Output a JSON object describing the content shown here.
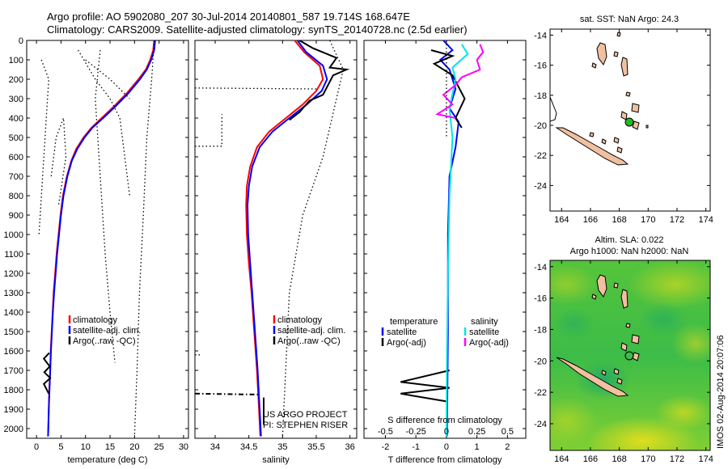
{
  "header": {
    "line1": "Argo profile: AO 5902080_207 30-Jul-2014 20140801_587 19.714S 168.647E",
    "line2": "Climatology: CARS2009. Satellite-adjusted climatology: synTS_20140728.nc (2.5d earlier)"
  },
  "side_text": "IMOS 02-Aug-2014 20:07:06",
  "credits": {
    "line1": "US ARGO PROJECT",
    "line2": "PI: STEPHEN RISER"
  },
  "colors": {
    "climatology": "#ff0000",
    "satellite": "#0000ff",
    "argo": "#000000",
    "sal_satellite": "#00e5e5",
    "sal_argo": "#ff00ff",
    "land": "#f1c0a0",
    "float_marker": "#22bb22"
  },
  "chart_data": [
    {
      "type": "line",
      "xlabel": "temperature (deg C)",
      "xlim": [
        -2,
        31
      ],
      "xticks": [
        0,
        5,
        10,
        15,
        20,
        25,
        30
      ],
      "ylim": [
        2050,
        0
      ],
      "yticks": [
        0,
        100,
        200,
        300,
        400,
        500,
        600,
        700,
        800,
        900,
        1000,
        1100,
        1200,
        1300,
        1400,
        1500,
        1600,
        1700,
        1800,
        1900,
        2000
      ],
      "legend": [
        "climatology",
        "satellite-adj. clim.",
        "Argo(..raw -QC)"
      ],
      "series": [
        {
          "name": "climatology",
          "color": "#ff0000",
          "points": [
            [
              24,
              0
            ],
            [
              23.8,
              50
            ],
            [
              23.2,
              100
            ],
            [
              22.3,
              150
            ],
            [
              20.8,
              200
            ],
            [
              18.5,
              270
            ],
            [
              15.8,
              340
            ],
            [
              13.3,
              400
            ],
            [
              11.2,
              450
            ],
            [
              9.6,
              500
            ],
            [
              8.1,
              560
            ],
            [
              7.1,
              620
            ],
            [
              6.2,
              700
            ],
            [
              5.4,
              800
            ],
            [
              4.9,
              900
            ],
            [
              4.5,
              1000
            ],
            [
              4.1,
              1100
            ],
            [
              3.8,
              1200
            ],
            [
              3.5,
              1300
            ],
            [
              3.3,
              1400
            ],
            [
              3.1,
              1500
            ],
            [
              2.9,
              1600
            ],
            [
              2.8,
              1700
            ],
            [
              2.6,
              1800
            ],
            [
              2.5,
              1900
            ],
            [
              2.4,
              2000
            ],
            [
              2.35,
              2040
            ]
          ]
        },
        {
          "name": "satellite-adj. clim.",
          "color": "#0000ff",
          "points": [
            [
              24.2,
              0
            ],
            [
              24,
              50
            ],
            [
              23.4,
              100
            ],
            [
              22.5,
              150
            ],
            [
              21.1,
              200
            ],
            [
              18.8,
              270
            ],
            [
              16.1,
              340
            ],
            [
              13.6,
              400
            ],
            [
              11.4,
              450
            ],
            [
              9.8,
              500
            ],
            [
              8.3,
              560
            ],
            [
              7.2,
              620
            ],
            [
              6.3,
              700
            ],
            [
              5.5,
              800
            ],
            [
              5,
              900
            ],
            [
              4.6,
              1000
            ],
            [
              4.2,
              1100
            ],
            [
              3.9,
              1200
            ],
            [
              3.6,
              1300
            ],
            [
              3.35,
              1400
            ],
            [
              3.15,
              1500
            ],
            [
              2.95,
              1600
            ],
            [
              2.8,
              1700
            ],
            [
              2.65,
              1800
            ],
            [
              2.5,
              1900
            ],
            [
              2.4,
              2000
            ],
            [
              2.35,
              2040
            ]
          ]
        },
        {
          "name": "Argo(..raw -QC)",
          "color": "#000000",
          "points": [
            [
              2.6,
              1610
            ],
            [
              1.5,
              1640
            ],
            [
              2.7,
              1680
            ],
            [
              1.6,
              1710
            ],
            [
              2.8,
              1740
            ],
            [
              1.5,
              1770
            ],
            [
              2.5,
              1820
            ]
          ]
        },
        {
          "name": "",
          "color": "#000000",
          "dotted": true,
          "points": [
            [
              24,
              0
            ],
            [
              23.5,
              200
            ],
            [
              22.5,
              500
            ],
            [
              21.8,
              900
            ],
            [
              21,
              1300
            ],
            [
              20.5,
              1700
            ],
            [
              20,
              2040
            ]
          ]
        },
        {
          "name": "",
          "color": "#000000",
          "dotted": true,
          "points": [
            [
              13,
              50
            ],
            [
              12,
              300
            ],
            [
              13,
              700
            ],
            [
              14,
              1100
            ],
            [
              15,
              1400
            ],
            [
              16,
              1660
            ]
          ]
        },
        {
          "name": "",
          "color": "#000000",
          "dotted": true,
          "points": [
            [
              10,
              100
            ],
            [
              15,
              200
            ],
            [
              19,
              300
            ]
          ]
        },
        {
          "name": "",
          "color": "#000000",
          "dotted": true,
          "points": [
            [
              8.5,
              50
            ],
            [
              12,
              200
            ],
            [
              15,
              300
            ],
            [
              17,
              400
            ],
            [
              19,
              800
            ]
          ]
        },
        {
          "name": "",
          "color": "#000000",
          "dotted": true,
          "points": [
            [
              1,
              100
            ],
            [
              2.5,
              200
            ],
            [
              2,
              400
            ],
            [
              1.5,
              600
            ],
            [
              1,
              800
            ],
            [
              0.5,
              1000
            ]
          ]
        },
        {
          "name": "",
          "color": "#000000",
          "dotted": true,
          "points": [
            [
              3,
              700
            ],
            [
              4,
              500
            ],
            [
              5.5,
              400
            ],
            [
              6,
              600
            ],
            [
              4.5,
              850
            ]
          ]
        }
      ]
    },
    {
      "type": "line",
      "xlabel": "salinity",
      "xlim": [
        33.7,
        36.1
      ],
      "xticks": [
        34,
        34.5,
        35,
        35.5,
        36
      ],
      "ylim": [
        2050,
        0
      ],
      "legend": [
        "climatology",
        "satellite-adj. clim.",
        "Argo(..raw -QC)"
      ],
      "series": [
        {
          "name": "climatology",
          "color": "#ff0000",
          "points": [
            [
              35.18,
              0
            ],
            [
              35.32,
              60
            ],
            [
              35.55,
              130
            ],
            [
              35.6,
              200
            ],
            [
              35.5,
              260
            ],
            [
              35.3,
              330
            ],
            [
              35.05,
              400
            ],
            [
              34.8,
              470
            ],
            [
              34.62,
              550
            ],
            [
              34.52,
              650
            ],
            [
              34.47,
              750
            ],
            [
              34.46,
              850
            ],
            [
              34.47,
              1000
            ],
            [
              34.5,
              1150
            ],
            [
              34.54,
              1300
            ],
            [
              34.58,
              1500
            ],
            [
              34.62,
              1700
            ],
            [
              34.65,
              1900
            ],
            [
              34.67,
              2040
            ]
          ]
        },
        {
          "name": "satellite-adj. clim.",
          "color": "#0000ff",
          "points": [
            [
              35.22,
              0
            ],
            [
              35.35,
              60
            ],
            [
              35.6,
              130
            ],
            [
              35.66,
              200
            ],
            [
              35.58,
              260
            ],
            [
              35.36,
              330
            ],
            [
              35.1,
              400
            ],
            [
              34.85,
              470
            ],
            [
              34.66,
              550
            ],
            [
              34.55,
              650
            ],
            [
              34.5,
              750
            ],
            [
              34.48,
              850
            ],
            [
              34.49,
              1000
            ],
            [
              34.52,
              1150
            ],
            [
              34.55,
              1300
            ],
            [
              34.59,
              1500
            ],
            [
              34.63,
              1700
            ],
            [
              34.66,
              1900
            ],
            [
              34.68,
              2040
            ]
          ]
        },
        {
          "name": "Argo(..raw -QC)",
          "color": "#000000",
          "points": [
            [
              35.25,
              0
            ],
            [
              35.45,
              40
            ],
            [
              35.8,
              90
            ],
            [
              35.7,
              140
            ],
            [
              35.95,
              150
            ],
            [
              35.75,
              180
            ],
            [
              35.6,
              280
            ],
            [
              35.4,
              310
            ],
            [
              35.25,
              370
            ],
            [
              35.1,
              410
            ]
          ]
        },
        {
          "name": "",
          "color": "#000000",
          "dashdot": true,
          "points": [
            [
              33.7,
              1820
            ],
            [
              34.67,
              1825
            ]
          ]
        },
        {
          "name": "",
          "color": "#000000",
          "points": [
            [
              34.72,
              1840
            ],
            [
              34.72,
              1980
            ]
          ]
        },
        {
          "name": "",
          "color": "#000000",
          "dotted": true,
          "points": [
            [
              35.7,
              0
            ],
            [
              35.9,
              150
            ],
            [
              35.8,
              300
            ],
            [
              35.6,
              600
            ],
            [
              35.3,
              900
            ],
            [
              35.1,
              1300
            ],
            [
              35,
              2040
            ]
          ]
        },
        {
          "name": "",
          "color": "#000000",
          "dotted": true,
          "points": [
            [
              33.7,
              245
            ],
            [
              35.5,
              250
            ]
          ]
        },
        {
          "name": "",
          "color": "#000000",
          "dotted": true,
          "points": [
            [
              33.7,
              1620
            ],
            [
              33.8,
              1620
            ]
          ]
        },
        {
          "name": "",
          "color": "#000000",
          "dotted": true,
          "points": [
            [
              33.7,
              545
            ],
            [
              34.1,
              545
            ],
            [
              34.1,
              380
            ]
          ]
        }
      ]
    },
    {
      "type": "line",
      "xlabel": "T difference from climatology",
      "xlabel2": "S difference from climatology",
      "xlim": [
        -2.7,
        2.6
      ],
      "xticks": [
        -2,
        -1,
        0,
        1,
        2
      ],
      "sticks_values": [
        -0.5,
        -0.25,
        0,
        0.25,
        0.5
      ],
      "sticks": [
        "-0.5",
        "-0.25",
        "0",
        "0.25",
        "0.5"
      ],
      "ylim": [
        2050,
        0
      ],
      "legend_temperature": {
        "title": "temperature",
        "items": [
          "satellite",
          "Argo(-adj)"
        ]
      },
      "legend_salinity": {
        "title": "salinity",
        "items": [
          "satellite",
          "Argo(-adj)"
        ]
      },
      "series": [
        {
          "name": "satellite",
          "color": "#0000ff",
          "points": [
            [
              -0.1,
              0
            ],
            [
              0.2,
              50
            ],
            [
              -0.2,
              100
            ],
            [
              0.1,
              150
            ],
            [
              0.3,
              250
            ],
            [
              0.1,
              350
            ],
            [
              0.4,
              420
            ],
            [
              0.3,
              550
            ],
            [
              0.1,
              700
            ],
            [
              0.05,
              1000
            ],
            [
              0.05,
              1500
            ],
            [
              0.02,
              2040
            ]
          ]
        },
        {
          "name": "Argo(-adj)",
          "color": "#000000",
          "points": [
            [
              -0.5,
              50
            ],
            [
              0.2,
              80
            ],
            [
              -0.4,
              120
            ],
            [
              0.2,
              180
            ],
            [
              0.6,
              300
            ],
            [
              0.3,
              400
            ],
            [
              0.5,
              450
            ]
          ]
        },
        {
          "name": "",
          "color": "#000000",
          "points": [
            [
              0.1,
              1700
            ],
            [
              -1.5,
              1760
            ],
            [
              0.1,
              1790
            ],
            [
              -1.5,
              1820
            ],
            [
              0,
              1860
            ]
          ]
        },
        {
          "name": "satellite",
          "color": "#00e5e5",
          "points": [
            [
              0.5,
              20
            ],
            [
              0.7,
              70
            ],
            [
              0.2,
              140
            ],
            [
              0.3,
              200
            ],
            [
              0.1,
              350
            ],
            [
              0.2,
              500
            ],
            [
              0.1,
              800
            ],
            [
              0.05,
              1200
            ],
            [
              0.02,
              1600
            ],
            [
              0,
              2040
            ]
          ]
        },
        {
          "name": "Argo(-adj)",
          "color": "#ff00ff",
          "points": [
            [
              1.1,
              20
            ],
            [
              1.2,
              60
            ],
            [
              1,
              100
            ],
            [
              1.1,
              150
            ],
            [
              0.5,
              190
            ],
            [
              0.3,
              230
            ],
            [
              -0.1,
              280
            ],
            [
              0.2,
              330
            ],
            [
              -0.3,
              380
            ],
            [
              0.3,
              400
            ]
          ]
        },
        {
          "name": "",
          "color": "#000000",
          "dotted": true,
          "points": [
            [
              0,
              0
            ],
            [
              0,
              500
            ]
          ]
        }
      ]
    }
  ],
  "map_top": {
    "title": "sat. SST: NaN Argo: 24.3",
    "xticks": [
      "164",
      "166",
      "168",
      "170",
      "172",
      "174"
    ],
    "yticks": [
      "-14",
      "-16",
      "-18",
      "-20",
      "-22",
      "-24"
    ],
    "float_lon": 168.647,
    "float_lat": -19.714
  },
  "map_bottom": {
    "title1": "Altim. SLA: 0.022",
    "title2": "Argo h1000: NaN h2000: NaN",
    "xticks": [
      "164",
      "166",
      "168",
      "170",
      "172",
      "174"
    ],
    "yticks": [
      "-14",
      "-16",
      "-18",
      "-20",
      "-22",
      "-24"
    ]
  }
}
